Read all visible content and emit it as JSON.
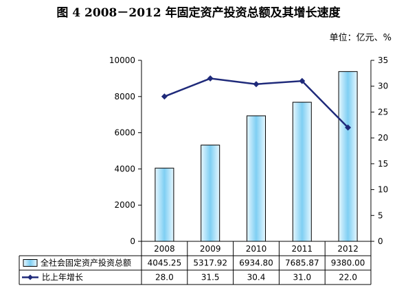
{
  "title": "图 4    2008－2012 年固定资产投资总额及其增长速度",
  "unit": "单位：亿元、%",
  "chart_data": {
    "type": "bar+line",
    "categories": [
      "2008",
      "2009",
      "2010",
      "2011",
      "2012"
    ],
    "series": [
      {
        "name": "全社会固定资产投资总额",
        "type": "bar",
        "axis": "left",
        "values": [
          4045.25,
          5317.92,
          6934.8,
          7685.87,
          9380.0
        ],
        "labels": [
          "4045.25",
          "5317.92",
          "6934.80",
          "7685.87",
          "9380.00"
        ]
      },
      {
        "name": "比上年增长",
        "type": "line",
        "axis": "right",
        "values": [
          28.0,
          31.5,
          30.4,
          31.0,
          22.0
        ],
        "labels": [
          "28.0",
          "31.5",
          "30.4",
          "31.0",
          "22.0"
        ]
      }
    ],
    "y_left": {
      "min": 0,
      "max": 10000,
      "ticks": [
        0,
        2000,
        4000,
        6000,
        8000,
        10000
      ]
    },
    "y_right": {
      "min": 0,
      "max": 35,
      "ticks": [
        0,
        5,
        10,
        15,
        20,
        25,
        30,
        35
      ]
    },
    "grid": false,
    "legend": "data-table",
    "colors": {
      "bar_fill_light": "#e6f7ff",
      "bar_fill_dark": "#7fcff3",
      "bar_stroke": "#000000",
      "line": "#1f2a7a"
    }
  }
}
